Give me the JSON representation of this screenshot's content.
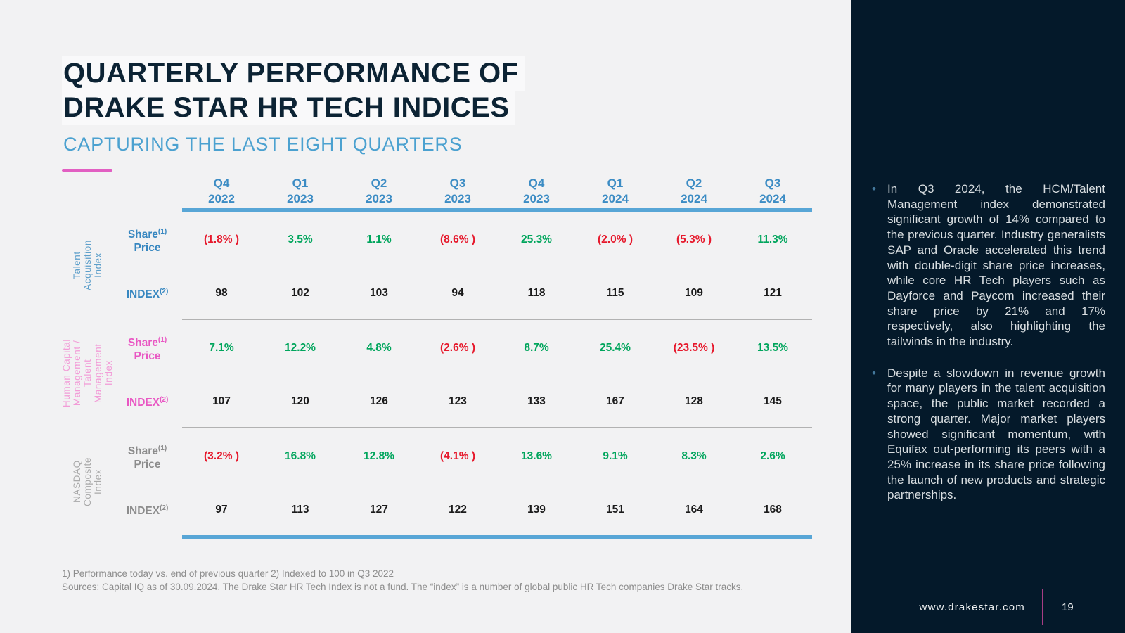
{
  "slide": {
    "title_line1": "QUARTERLY PERFORMANCE OF",
    "title_line2": "DRAKE STAR HR TECH INDICES",
    "subtitle": "CAPTURING THE LAST EIGHT QUARTERS"
  },
  "colors": {
    "positive": "#00a55c",
    "negative": "#e6182b",
    "header_blue": "#3c8cc4",
    "accent_pink": "#e25fc2",
    "dark_panel": "#04192a"
  },
  "table": {
    "quarters": [
      {
        "quarter": "Q4",
        "year": "2022"
      },
      {
        "quarter": "Q1",
        "year": "2023"
      },
      {
        "quarter": "Q2",
        "year": "2023"
      },
      {
        "quarter": "Q3",
        "year": "2023"
      },
      {
        "quarter": "Q4",
        "year": "2023"
      },
      {
        "quarter": "Q1",
        "year": "2024"
      },
      {
        "quarter": "Q2",
        "year": "2024"
      },
      {
        "quarter": "Q3",
        "year": "2024"
      }
    ],
    "row_labels": {
      "share": {
        "word": "Share",
        "sup": "(1)",
        "word2": "Price"
      },
      "index": {
        "word": "INDEX",
        "sup": "(2)"
      }
    },
    "groups": [
      {
        "name": "Talent Acquisition Index",
        "label_lines": [
          "Talent",
          "Acquisition",
          "Index"
        ],
        "vlabel_color": "#5d9fca",
        "row_label_color": "#3787c0",
        "share_price": [
          "(1.8% )",
          "3.5%",
          "1.1%",
          "(8.6% )",
          "25.3%",
          "(2.0% )",
          "(5.3% )",
          "11.3%"
        ],
        "index": [
          "98",
          "102",
          "103",
          "94",
          "118",
          "115",
          "109",
          "121"
        ]
      },
      {
        "name": "Human Capital Management / Talent Management Index",
        "label_lines": [
          "Human Capital",
          "Management /",
          "Talent",
          "Management",
          "Index"
        ],
        "vlabel_color": "#f29cd7",
        "row_label_color": "#e957c3",
        "share_price": [
          "7.1%",
          "12.2%",
          "4.8%",
          "(2.6% )",
          "8.7%",
          "25.4%",
          "(23.5% )",
          "13.5%"
        ],
        "index": [
          "107",
          "120",
          "126",
          "123",
          "133",
          "167",
          "128",
          "145"
        ]
      },
      {
        "name": "NASDAQ Composite Index",
        "label_lines": [
          "NASDAQ",
          "Composite",
          "Index"
        ],
        "vlabel_color": "#a9a9a9",
        "row_label_color": "#8c8c8c",
        "share_price": [
          "(3.2% )",
          "16.8%",
          "12.8%",
          "(4.1% )",
          "13.6%",
          "9.1%",
          "8.3%",
          "2.6%"
        ],
        "index": [
          "97",
          "113",
          "127",
          "122",
          "139",
          "151",
          "164",
          "168"
        ]
      }
    ]
  },
  "footnotes": [
    "1) Performance today vs. end of previous quarter 2) Indexed to 100 in Q3 2022",
    "Sources: Capital IQ as of 30.09.2024. The Drake Star HR Tech Index is not a fund. The “index” is a number of global public HR Tech companies Drake Star tracks."
  ],
  "sidebar": {
    "bullets": [
      "In Q3 2024, the HCM/Talent Management index demonstrated significant growth of 14% compared to the previous quarter. Industry generalists SAP and Oracle accelerated this trend with double-digit share price increases, while core HR Tech players such as Dayforce and Paycom increased their share price by 21% and 17% respectively, also highlighting the tailwinds in the industry.",
      "Despite a slowdown in revenue growth for many players in the talent acquisition space, the public market recorded a strong quarter. Major market players showed significant momentum, with Equifax out-performing its peers with a 25% increase in its share price following the launch of new products and strategic partnerships."
    ],
    "footer": {
      "url": "www.drakestar.com",
      "page": "19"
    }
  }
}
